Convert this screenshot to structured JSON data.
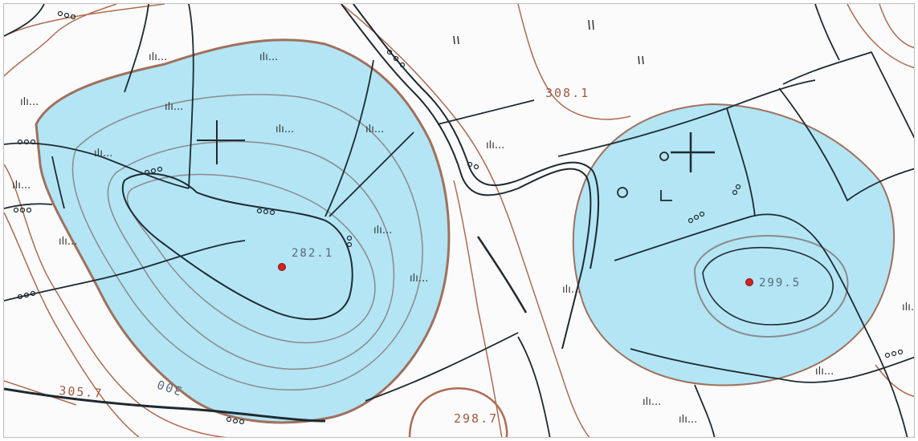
{
  "map": {
    "colors": {
      "depression_fill": "#b3e5f5",
      "depression_edge": "#a0705c",
      "contour_brown": "#b06a50",
      "contour_grey": "#8a8a8a",
      "line_black": "#1e2a30",
      "point_red": "#d2231f",
      "background": "#fbfbfb"
    },
    "elevation_labels": {
      "depression_left": "282.1",
      "depression_right": "299.5",
      "top_road": "308.1",
      "bottom_left": "305.7",
      "bottom_center": "298.7"
    },
    "contour_label": "300",
    "marsh_symbol": "ılı...",
    "points": [
      {
        "name": "depression-left-low-point",
        "label": "282.1"
      },
      {
        "name": "depression-right-low-point",
        "label": "299.5"
      }
    ]
  }
}
